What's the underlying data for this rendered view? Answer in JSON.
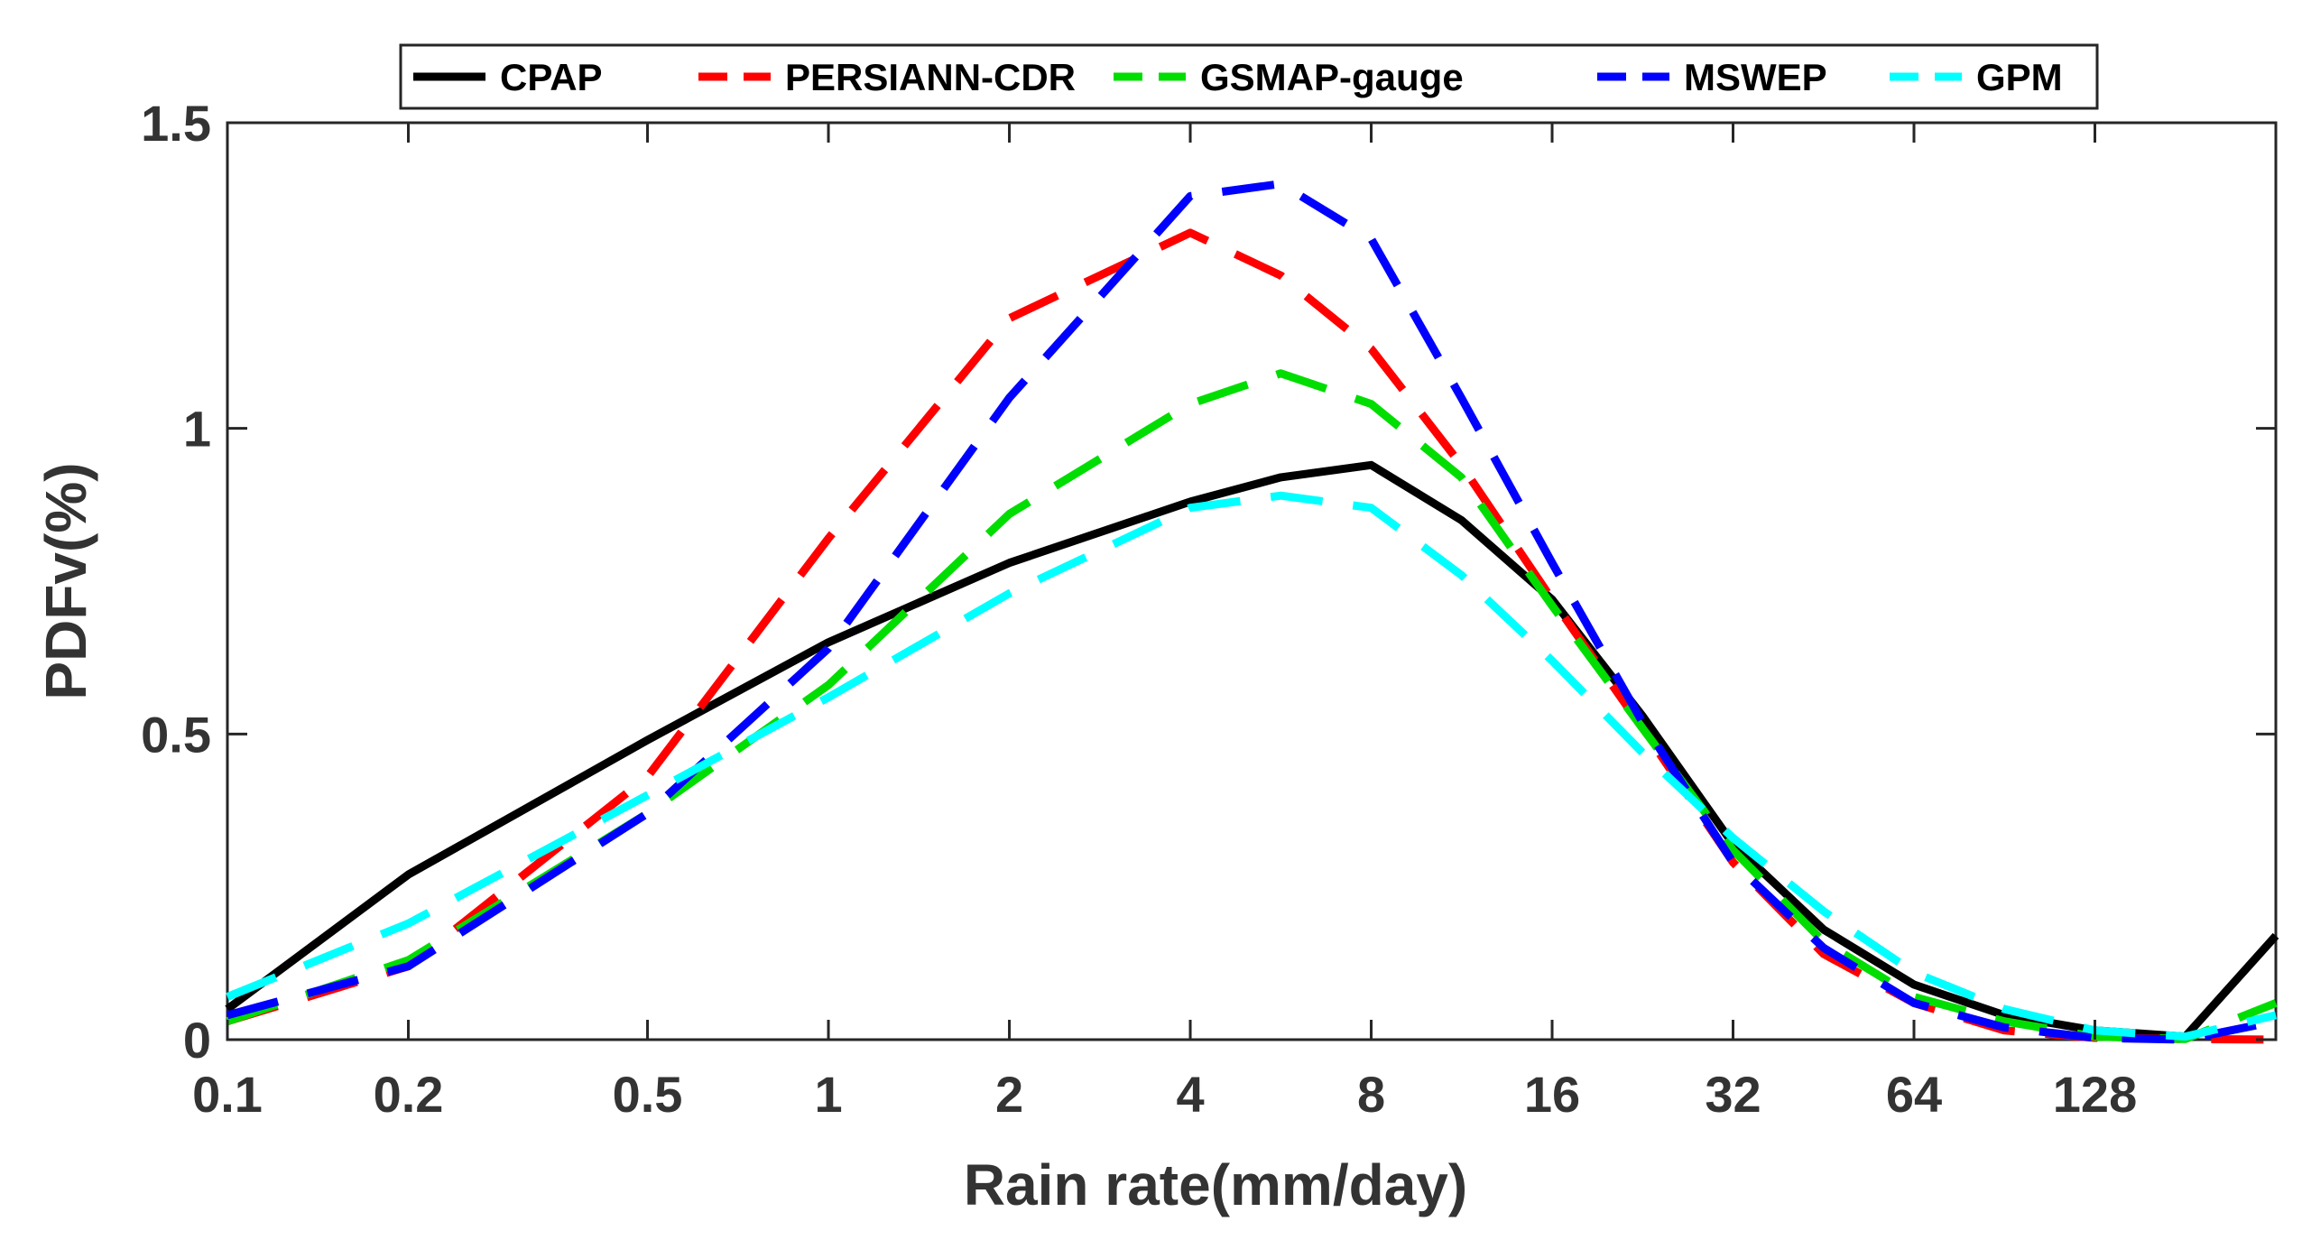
{
  "chart_data": {
    "type": "line",
    "title": "",
    "xlabel": "Rain rate(mm/day)",
    "ylabel": "PDFv(%)",
    "xscale": "log",
    "xlim": [
      0.1,
      256
    ],
    "ylim": [
      0,
      1.5
    ],
    "xticks": [
      0.1,
      0.2,
      0.5,
      1,
      2,
      4,
      8,
      16,
      32,
      64,
      128
    ],
    "xtick_labels": [
      "0.1",
      "0.2",
      "0.5",
      "1",
      "2",
      "4",
      "8",
      "16",
      "32",
      "64",
      "128"
    ],
    "yticks": [
      0,
      0.5,
      1,
      1.5
    ],
    "ytick_labels": [
      "0",
      "0.5",
      "1",
      "1.5"
    ],
    "legend_position": "top",
    "x": [
      0.1,
      0.2,
      0.5,
      1,
      2,
      4,
      5.66,
      8,
      11.3,
      16,
      22.6,
      32,
      45.3,
      64,
      90.5,
      128,
      181,
      256
    ],
    "series": [
      {
        "name": "CPAP",
        "color": "#000000",
        "dash": "solid",
        "values": [
          0.05,
          0.27,
          0.49,
          0.65,
          0.78,
          0.88,
          0.92,
          0.94,
          0.85,
          0.72,
          0.53,
          0.32,
          0.18,
          0.09,
          0.04,
          0.015,
          0.005,
          0.17
        ]
      },
      {
        "name": "PERSIANN-CDR",
        "color": "#ff0000",
        "dash": "dashed",
        "values": [
          0.03,
          0.12,
          0.43,
          0.82,
          1.18,
          1.32,
          1.25,
          1.13,
          0.94,
          0.72,
          0.51,
          0.29,
          0.14,
          0.06,
          0.015,
          0.003,
          0.001,
          0.0
        ]
      },
      {
        "name": "GSMAP-gauge",
        "color": "#00dd00",
        "dash": "dashed",
        "values": [
          0.03,
          0.13,
          0.37,
          0.58,
          0.86,
          1.04,
          1.09,
          1.04,
          0.92,
          0.71,
          0.51,
          0.31,
          0.16,
          0.07,
          0.03,
          0.005,
          0.001,
          0.06
        ]
      },
      {
        "name": "MSWEP",
        "color": "#0000ff",
        "dash": "dashed",
        "values": [
          0.04,
          0.12,
          0.37,
          0.64,
          1.05,
          1.38,
          1.4,
          1.31,
          1.05,
          0.78,
          0.52,
          0.29,
          0.15,
          0.06,
          0.02,
          0.003,
          0.0,
          0.03
        ]
      },
      {
        "name": "GPM",
        "color": "#00ffff",
        "dash": "dashed",
        "values": [
          0.07,
          0.19,
          0.4,
          0.56,
          0.73,
          0.87,
          0.89,
          0.87,
          0.76,
          0.62,
          0.47,
          0.33,
          0.21,
          0.11,
          0.05,
          0.015,
          0.005,
          0.04
        ]
      }
    ]
  }
}
